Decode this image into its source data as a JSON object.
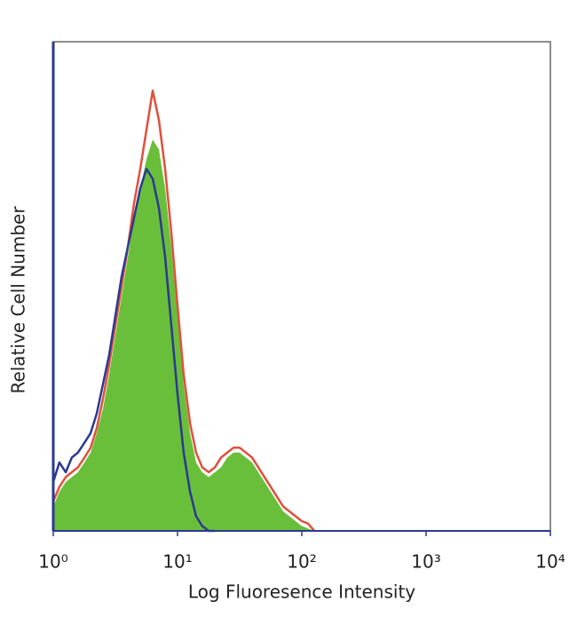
{
  "chart_data": {
    "type": "line",
    "x_label": "Log Fluoresence Intensity",
    "y_label": "Relative Cell Number",
    "xlog": true,
    "xlim": [
      1,
      10000
    ],
    "xticks": [
      {
        "value": 1,
        "label": "10⁰"
      },
      {
        "value": 10,
        "label": "10¹"
      },
      {
        "value": 100,
        "label": "10²"
      },
      {
        "value": 1000,
        "label": "10³"
      },
      {
        "value": 10000,
        "label": "10⁴"
      }
    ],
    "ylim": [
      0,
      100
    ],
    "x": [
      1,
      1.12,
      1.26,
      1.41,
      1.58,
      1.78,
      2,
      2.24,
      2.51,
      2.82,
      3.16,
      3.55,
      3.98,
      4.47,
      5.01,
      5.62,
      6.31,
      7.08,
      7.94,
      8.91,
      10,
      11.2,
      12.6,
      14.1,
      15.8,
      17.8,
      20,
      22.4,
      25.1,
      28.2,
      31.6,
      35.5,
      39.8,
      44.7,
      50.1,
      56.2,
      63.1,
      70.8,
      79.4,
      89.1,
      100,
      112,
      126
    ],
    "series": [
      {
        "color": "#6abf3a",
        "area": true,
        "values": [
          5,
          8,
          10,
          11,
          12,
          14,
          16,
          20,
          25,
          32,
          40,
          48,
          56,
          64,
          70,
          76,
          80,
          78,
          70,
          58,
          44,
          30,
          20,
          14,
          12,
          11,
          12,
          13,
          15,
          16,
          16,
          15,
          14,
          12,
          10,
          8,
          6,
          4,
          3,
          2,
          1,
          0.5,
          0
        ]
      },
      {
        "color": "#e0503c",
        "area": false,
        "values": [
          6,
          9,
          11,
          12,
          13,
          15,
          17,
          21,
          27,
          34,
          42,
          50,
          58,
          67,
          74,
          82,
          90,
          84,
          74,
          61,
          46,
          32,
          22,
          16,
          13,
          12,
          13,
          15,
          16,
          17,
          17,
          16,
          15,
          13,
          11,
          9,
          7,
          5,
          4,
          3,
          2,
          1.5,
          0
        ]
      },
      {
        "color": "#2b3990",
        "area": false,
        "values": [
          10,
          14,
          12,
          15,
          16,
          18,
          20,
          24,
          30,
          36,
          44,
          52,
          58,
          64,
          70,
          74,
          72,
          66,
          56,
          42,
          28,
          16,
          8,
          3,
          1,
          0,
          0,
          null,
          null,
          null,
          null,
          null,
          null,
          null,
          null,
          null,
          null,
          null,
          null,
          null,
          null,
          null,
          null
        ]
      }
    ]
  }
}
